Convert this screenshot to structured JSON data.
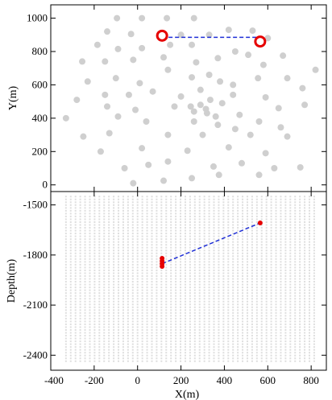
{
  "chart_data": [
    {
      "type": "scatter",
      "xlabel": "",
      "ylabel": "Y(m)",
      "xlim": [
        -400,
        870
      ],
      "ylim": [
        -40,
        1080
      ],
      "x_ticks": [
        -400,
        -200,
        0,
        200,
        400,
        600,
        800
      ],
      "y_ticks": [
        0,
        200,
        400,
        600,
        800,
        1000
      ],
      "y_tick_labels": [
        "0",
        "200",
        "400",
        "600",
        "800",
        "1000"
      ],
      "grid": false,
      "colors": {
        "stations": "#cfcfcf",
        "highlight": "#e60000",
        "link": "#1f2fd6"
      },
      "series": [
        {
          "role": "stations",
          "points": [
            [
              -95,
              1000
            ],
            [
              20,
              1000
            ],
            [
              135,
              1000
            ],
            [
              260,
              1000
            ],
            [
              -140,
              920
            ],
            [
              -30,
              905
            ],
            [
              200,
              900
            ],
            [
              330,
              900
            ],
            [
              420,
              930
            ],
            [
              530,
              925
            ],
            [
              600,
              880
            ],
            [
              -185,
              840
            ],
            [
              -90,
              815
            ],
            [
              20,
              820
            ],
            [
              150,
              840
            ],
            [
              250,
              840
            ],
            [
              450,
              800
            ],
            [
              -255,
              740
            ],
            [
              -150,
              740
            ],
            [
              -20,
              750
            ],
            [
              120,
              765
            ],
            [
              270,
              735
            ],
            [
              370,
              760
            ],
            [
              510,
              780
            ],
            [
              580,
              720
            ],
            [
              670,
              775
            ],
            [
              -230,
              620
            ],
            [
              -100,
              640
            ],
            [
              10,
              610
            ],
            [
              140,
              690
            ],
            [
              250,
              645
            ],
            [
              330,
              660
            ],
            [
              380,
              620
            ],
            [
              440,
              600
            ],
            [
              555,
              640
            ],
            [
              690,
              640
            ],
            [
              820,
              690
            ],
            [
              -280,
              510
            ],
            [
              -150,
              540
            ],
            [
              -40,
              540
            ],
            [
              70,
              560
            ],
            [
              200,
              530
            ],
            [
              290,
              570
            ],
            [
              440,
              540
            ],
            [
              590,
              525
            ],
            [
              760,
              580
            ],
            [
              -140,
              470
            ],
            [
              -10,
              450
            ],
            [
              170,
              470
            ],
            [
              245,
              470
            ],
            [
              290,
              480
            ],
            [
              315,
              455
            ],
            [
              335,
              510
            ],
            [
              390,
              490
            ],
            [
              260,
              440
            ],
            [
              320,
              430
            ],
            [
              360,
              410
            ],
            [
              470,
              420
            ],
            [
              650,
              460
            ],
            [
              770,
              480
            ],
            [
              -330,
              400
            ],
            [
              -90,
              410
            ],
            [
              40,
              380
            ],
            [
              260,
              380
            ],
            [
              370,
              360
            ],
            [
              450,
              335
            ],
            [
              560,
              380
            ],
            [
              660,
              345
            ],
            [
              -250,
              290
            ],
            [
              -130,
              310
            ],
            [
              140,
              300
            ],
            [
              300,
              300
            ],
            [
              520,
              300
            ],
            [
              690,
              290
            ],
            [
              -170,
              200
            ],
            [
              20,
              220
            ],
            [
              230,
              205
            ],
            [
              420,
              225
            ],
            [
              590,
              190
            ],
            [
              -60,
              100
            ],
            [
              50,
              120
            ],
            [
              140,
              140
            ],
            [
              350,
              110
            ],
            [
              480,
              130
            ],
            [
              630,
              100
            ],
            [
              750,
              105
            ],
            [
              -20,
              10
            ],
            [
              120,
              25
            ],
            [
              250,
              40
            ],
            [
              375,
              60
            ],
            [
              560,
              60
            ]
          ]
        },
        {
          "role": "highlight",
          "points": [
            [
              113,
              895
            ],
            [
              565,
              860
            ]
          ]
        },
        {
          "role": "link",
          "points": [
            [
              113,
              885
            ],
            [
              560,
              885
            ]
          ]
        }
      ]
    },
    {
      "type": "scatter",
      "xlabel": "X(m)",
      "ylabel": "Depth(m)",
      "xlim": [
        -400,
        870
      ],
      "ylim": [
        -2490,
        -1420
      ],
      "x_ticks": [
        -400,
        -200,
        0,
        200,
        400,
        600,
        800
      ],
      "x_tick_labels": [
        "-400",
        "-200",
        "0",
        "200",
        "400",
        "600",
        "800"
      ],
      "y_ticks": [
        -2400,
        -2100,
        -1800,
        -1500
      ],
      "y_tick_labels": [
        "-2400",
        "-2100",
        "-1800",
        "-1500"
      ],
      "grid": false,
      "colors": {
        "strings": "#dedede",
        "highlight": "#e60000",
        "link": "#1f2fd6"
      },
      "strings": {
        "x_from": -330,
        "x_to": 820,
        "x_step": 22,
        "depth_top": -1450,
        "depth_bottom": -2450,
        "depth_step": 17
      },
      "highlight_points": [
        [
          113,
          -1820
        ],
        [
          113,
          -1836
        ],
        [
          113,
          -1852
        ],
        [
          113,
          -1868
        ],
        [
          565,
          -1608
        ]
      ],
      "link_line": [
        [
          113,
          -1852
        ],
        [
          565,
          -1608
        ]
      ]
    }
  ]
}
